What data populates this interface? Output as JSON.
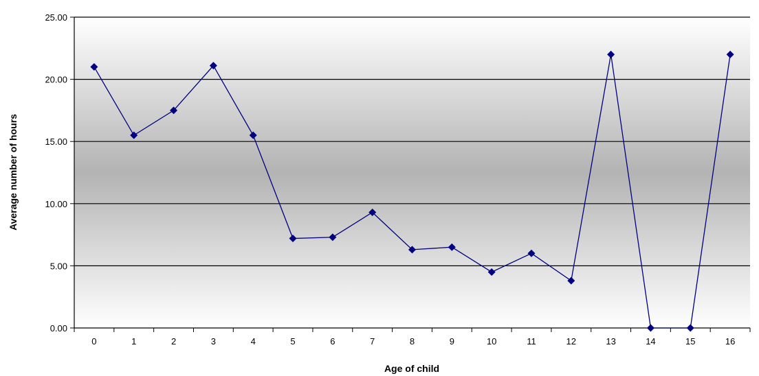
{
  "chart_data": {
    "type": "line",
    "title": "",
    "xlabel": "Age of child",
    "ylabel": "Average number of hours",
    "categories": [
      "0",
      "1",
      "2",
      "3",
      "4",
      "5",
      "6",
      "7",
      "8",
      "9",
      "10",
      "11",
      "12",
      "13",
      "14",
      "15",
      "16"
    ],
    "ylim": [
      0,
      25
    ],
    "yticks": [
      "0.00",
      "5.00",
      "10.00",
      "15.00",
      "20.00",
      "25.00"
    ],
    "grid": true,
    "legend": "none",
    "series": [
      {
        "values": [
          21.0,
          15.5,
          17.5,
          21.1,
          15.5,
          7.2,
          7.3,
          9.3,
          6.3,
          6.5,
          4.5,
          6.0,
          3.8,
          22.0,
          0.0,
          0.0,
          22.0
        ],
        "color": "#000080",
        "marker": "diamond"
      }
    ],
    "colors": {
      "plot_gradient_light": "#ffffff",
      "plot_gradient_dark": "#b3b3b3",
      "gridline": "#000000",
      "axis": "#000000"
    }
  }
}
